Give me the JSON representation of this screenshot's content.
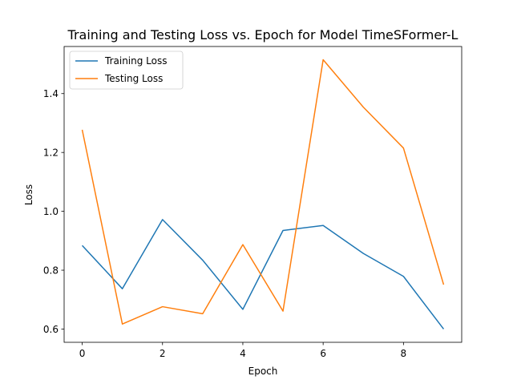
{
  "chart_data": {
    "type": "line",
    "title": "Training and Testing Loss vs. Epoch for Model TimeSFormer-L",
    "xlabel": "Epoch",
    "ylabel": "Loss",
    "x": [
      0,
      1,
      2,
      3,
      4,
      5,
      6,
      7,
      8,
      9
    ],
    "xlim": [
      -0.45,
      9.45
    ],
    "ylim": [
      0.555,
      1.56
    ],
    "xticks": [
      0,
      2,
      4,
      6,
      8
    ],
    "yticks": [
      0.6,
      0.8,
      1.0,
      1.2,
      1.4
    ],
    "xtick_labels": [
      "0",
      "2",
      "4",
      "6",
      "8"
    ],
    "ytick_labels": [
      "0.6",
      "0.8",
      "1.0",
      "1.2",
      "1.4"
    ],
    "grid": false,
    "legend_position": "upper-left",
    "series": [
      {
        "name": "Training Loss",
        "color": "#1f77b4",
        "values": [
          0.884,
          0.737,
          0.972,
          0.834,
          0.667,
          0.935,
          0.952,
          0.857,
          0.779,
          0.6
        ]
      },
      {
        "name": "Testing Loss",
        "color": "#ff7f0e",
        "values": [
          1.277,
          0.617,
          0.676,
          0.652,
          0.887,
          0.661,
          1.515,
          1.354,
          1.215,
          0.751
        ]
      }
    ]
  }
}
